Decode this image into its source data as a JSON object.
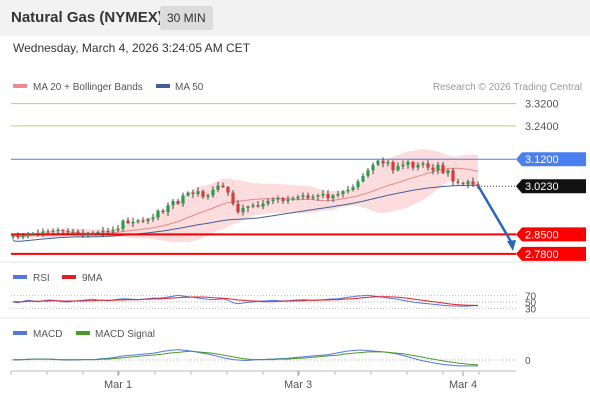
{
  "header": {
    "title": "Natural Gas (NYMEX)",
    "timeframe": "30 MIN",
    "timestamp": "Wednesday, March 4, 2026 3:24:05 AM CET"
  },
  "colors": {
    "bullish": "#2a9d4a",
    "bearish": "#d63a3a",
    "ma20": "#e38a8a",
    "bollinger_fill": "#fcdcdc",
    "ma50": "#3f5f9a",
    "resistance": "#a6d67f",
    "pivot": "#4a7ff0",
    "support": "#ff0000",
    "rsi": "#5577dd",
    "rsi_9ma": "#e02020",
    "macd": "#5577dd",
    "macd_signal": "#4a9a2a",
    "arrow": "#2a67b8"
  },
  "chart_data": [
    {
      "type": "candlestick",
      "legend": [
        {
          "name": "MA 20 + Bollinger Bands",
          "color": "#f08a8a"
        },
        {
          "name": "MA 50",
          "color": "#3f5f9a"
        }
      ],
      "legend_placement": "top-left",
      "credit": "Research © 2026 Trading Central",
      "ylim": [
        2.765,
        3.34
      ],
      "x_ticks": [
        "Mar 1",
        "Mar 3",
        "Mar 4"
      ],
      "x_tick_index": [
        21,
        57,
        90
      ],
      "bars_count": 94,
      "levels": [
        {
          "value": 3.32,
          "label": "3.3200",
          "kind": "resistance"
        },
        {
          "value": 3.24,
          "label": "3.2400",
          "kind": "resistance"
        },
        {
          "value": 3.12,
          "label": "3.1200",
          "kind": "pivot"
        },
        {
          "value": 2.85,
          "label": "2.8500",
          "kind": "support"
        },
        {
          "value": 2.78,
          "label": "2.7800",
          "kind": "support"
        }
      ],
      "last_price": {
        "value": 3.023,
        "label": "3.0230"
      },
      "forecast": {
        "from_index": 93,
        "from_value": 3.025,
        "to_index": 100,
        "to_value": 2.79
      },
      "close": [
        2.845,
        2.84,
        2.845,
        2.85,
        2.852,
        2.855,
        2.86,
        2.858,
        2.862,
        2.865,
        2.862,
        2.858,
        2.86,
        2.855,
        2.85,
        2.852,
        2.855,
        2.858,
        2.862,
        2.86,
        2.865,
        2.87,
        2.9,
        2.89,
        2.895,
        2.9,
        2.898,
        2.905,
        2.91,
        2.935,
        2.93,
        2.955,
        2.97,
        2.96,
        2.99,
        3.0,
        2.995,
        3.005,
        2.985,
        2.99,
        3.01,
        3.025,
        3.02,
        3.0,
        2.96,
        2.93,
        2.945,
        2.95,
        2.955,
        2.95,
        2.96,
        2.97,
        2.975,
        2.98,
        2.97,
        2.975,
        2.98,
        2.985,
        2.99,
        2.98,
        2.985,
        2.99,
        2.995,
        2.98,
        2.99,
        2.995,
        3.005,
        3.01,
        3.02,
        3.04,
        3.06,
        3.08,
        3.1,
        3.115,
        3.105,
        3.11,
        3.08,
        3.095,
        3.1,
        3.11,
        3.09,
        3.1,
        3.105,
        3.09,
        3.08,
        3.1,
        3.07,
        3.08,
        3.04,
        3.035,
        3.03,
        3.04,
        3.03,
        3.025
      ]
    },
    {
      "type": "line",
      "legend": [
        {
          "name": "RSI",
          "color": "#5577dd"
        },
        {
          "name": "9MA",
          "color": "#e02020"
        }
      ],
      "y_ticks": [
        "70",
        "50",
        "30"
      ],
      "ylim": [
        20,
        80
      ],
      "series": [
        {
          "name": "RSI",
          "values": [
            50,
            48,
            52,
            55,
            53,
            51,
            54,
            56,
            55,
            53,
            51,
            50,
            52,
            54,
            55,
            57,
            58,
            56,
            55,
            54,
            56,
            58,
            60,
            59,
            58,
            57,
            58,
            60,
            62,
            61,
            63,
            65,
            67,
            70,
            68,
            66,
            64,
            62,
            60,
            58,
            57,
            58,
            60,
            55,
            48,
            45,
            47,
            49,
            50,
            52,
            53,
            54,
            55,
            54,
            53,
            54,
            55,
            56,
            57,
            56,
            55,
            56,
            57,
            58,
            59,
            60,
            62,
            64,
            66,
            68,
            69,
            70,
            68,
            66,
            64,
            62,
            60,
            58,
            55,
            52,
            50,
            48,
            46,
            45,
            43,
            42,
            40,
            39,
            38,
            38,
            37,
            38,
            39,
            40
          ]
        },
        {
          "name": "9MA",
          "values": [
            51,
            51,
            51,
            52,
            52,
            52,
            53,
            53,
            54,
            54,
            53,
            53,
            53,
            53,
            53,
            54,
            54,
            55,
            55,
            55,
            55,
            56,
            56,
            57,
            57,
            57,
            58,
            58,
            59,
            59,
            60,
            61,
            62,
            63,
            64,
            64,
            65,
            65,
            65,
            64,
            63,
            62,
            61,
            60,
            58,
            56,
            55,
            54,
            53,
            52,
            51,
            51,
            51,
            52,
            52,
            53,
            53,
            54,
            54,
            55,
            55,
            55,
            56,
            56,
            57,
            57,
            58,
            59,
            60,
            61,
            63,
            64,
            65,
            66,
            66,
            66,
            65,
            64,
            63,
            61,
            59,
            57,
            55,
            53,
            51,
            49,
            47,
            45,
            43,
            42,
            41,
            40,
            40,
            39
          ]
        }
      ]
    },
    {
      "type": "line",
      "legend": [
        {
          "name": "MACD",
          "color": "#5577dd"
        },
        {
          "name": "MACD Signal",
          "color": "#4a9a2a"
        }
      ],
      "y_ticks": [
        "0"
      ],
      "ylim": [
        -0.04,
        0.04
      ],
      "series": [
        {
          "name": "MACD",
          "values": [
            0.0,
            0.0,
            0.001,
            0.002,
            0.002,
            0.002,
            0.002,
            0.002,
            0.001,
            0.001,
            0.0,
            0.0,
            0.0,
            0.0,
            0.001,
            0.001,
            0.001,
            0.002,
            0.003,
            0.004,
            0.005,
            0.007,
            0.009,
            0.01,
            0.011,
            0.012,
            0.013,
            0.014,
            0.015,
            0.017,
            0.019,
            0.021,
            0.022,
            0.023,
            0.022,
            0.021,
            0.019,
            0.017,
            0.015,
            0.013,
            0.011,
            0.008,
            0.005,
            0.003,
            0.001,
            0.0,
            -0.001,
            -0.001,
            0.0,
            0.001,
            0.001,
            0.002,
            0.002,
            0.003,
            0.003,
            0.004,
            0.005,
            0.006,
            0.007,
            0.008,
            0.009,
            0.01,
            0.011,
            0.012,
            0.014,
            0.016,
            0.018,
            0.02,
            0.021,
            0.022,
            0.022,
            0.021,
            0.02,
            0.019,
            0.018,
            0.017,
            0.015,
            0.013,
            0.01,
            0.007,
            0.004,
            0.001,
            -0.002,
            -0.004,
            -0.006,
            -0.008,
            -0.01,
            -0.011,
            -0.012,
            -0.013,
            -0.013,
            -0.013,
            -0.013,
            -0.013
          ]
        },
        {
          "name": "MACD Signal",
          "values": [
            0.001,
            0.001,
            0.001,
            0.001,
            0.002,
            0.002,
            0.002,
            0.002,
            0.002,
            0.001,
            0.001,
            0.001,
            0.001,
            0.001,
            0.001,
            0.001,
            0.001,
            0.001,
            0.002,
            0.002,
            0.003,
            0.004,
            0.005,
            0.006,
            0.007,
            0.008,
            0.009,
            0.01,
            0.011,
            0.012,
            0.013,
            0.015,
            0.016,
            0.017,
            0.018,
            0.019,
            0.019,
            0.018,
            0.017,
            0.016,
            0.015,
            0.013,
            0.011,
            0.009,
            0.007,
            0.005,
            0.003,
            0.002,
            0.001,
            0.001,
            0.001,
            0.001,
            0.001,
            0.002,
            0.002,
            0.002,
            0.003,
            0.004,
            0.004,
            0.005,
            0.006,
            0.007,
            0.008,
            0.009,
            0.01,
            0.011,
            0.013,
            0.014,
            0.015,
            0.016,
            0.017,
            0.018,
            0.018,
            0.018,
            0.018,
            0.017,
            0.016,
            0.015,
            0.014,
            0.012,
            0.01,
            0.008,
            0.006,
            0.004,
            0.002,
            0.0,
            -0.002,
            -0.004,
            -0.005,
            -0.007,
            -0.008,
            -0.009,
            -0.01,
            -0.011
          ]
        }
      ]
    }
  ]
}
